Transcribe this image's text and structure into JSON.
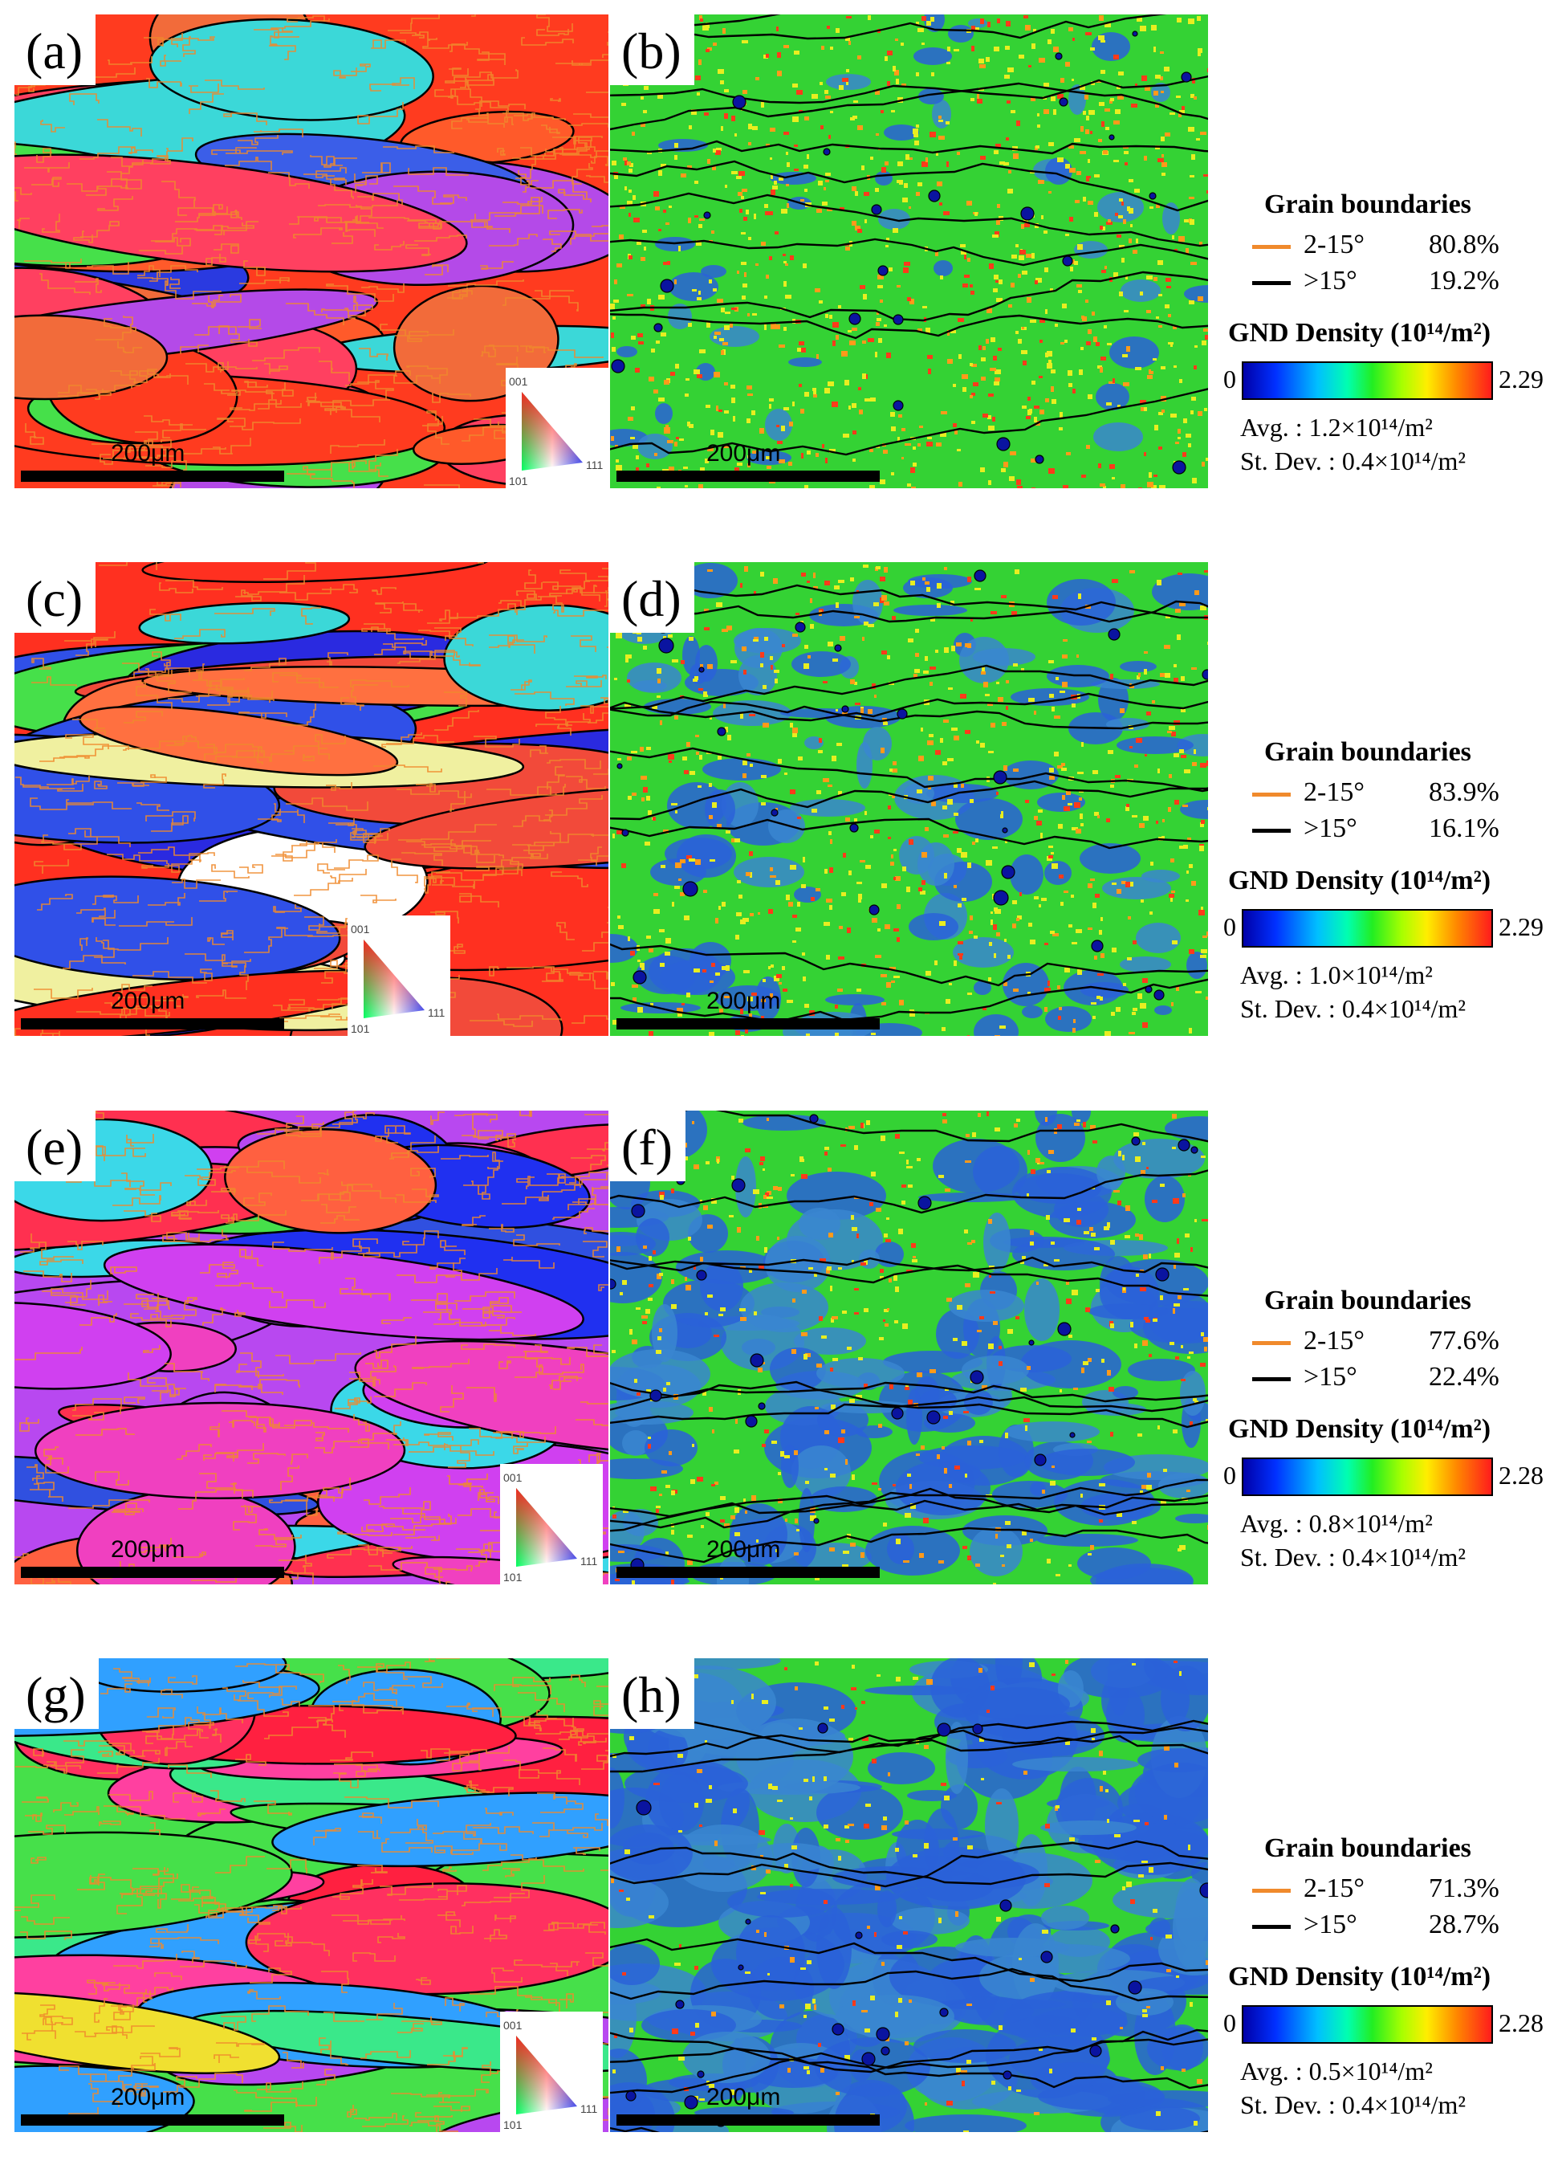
{
  "rows": [
    {
      "left_label": "(a)",
      "right_label": "(b)",
      "scale_bar_left": "200μm",
      "scale_bar_right": "200μm",
      "ipf_key": {
        "top": "001",
        "right": "111",
        "bottom": "101"
      },
      "legend": {
        "gb_title": "Grain boundaries",
        "gb_low": {
          "range": "2-15°",
          "value": "80.8%"
        },
        "gb_high": {
          "range": ">15°",
          "value": "19.2%"
        },
        "gnd_title": "GND Density (10¹⁴/m²)",
        "cbar_min": "0",
        "cbar_max": "2.29",
        "avg": "Avg. : 1.2×10¹⁴/m²",
        "stdev": "St. Dev. : 0.4×10¹⁴/m²"
      }
    },
    {
      "left_label": "(c)",
      "right_label": "(d)",
      "scale_bar_left": "200μm",
      "scale_bar_right": "200μm",
      "ipf_key": {
        "top": "001",
        "right": "111",
        "bottom": "101"
      },
      "legend": {
        "gb_title": "Grain boundaries",
        "gb_low": {
          "range": "2-15°",
          "value": "83.9%"
        },
        "gb_high": {
          "range": ">15°",
          "value": "16.1%"
        },
        "gnd_title": "GND Density (10¹⁴/m²)",
        "cbar_min": "0",
        "cbar_max": "2.29",
        "avg": "Avg. : 1.0×10¹⁴/m²",
        "stdev": "St. Dev. : 0.4×10¹⁴/m²"
      }
    },
    {
      "left_label": "(e)",
      "right_label": "(f)",
      "scale_bar_left": "200μm",
      "scale_bar_right": "200μm",
      "ipf_key": {
        "top": "001",
        "right": "111",
        "bottom": "101"
      },
      "legend": {
        "gb_title": "Grain boundaries",
        "gb_low": {
          "range": "2-15°",
          "value": "77.6%"
        },
        "gb_high": {
          "range": ">15°",
          "value": "22.4%"
        },
        "gnd_title": "GND Density (10¹⁴/m²)",
        "cbar_min": "0",
        "cbar_max": "2.28",
        "avg": "Avg. : 0.8×10¹⁴/m²",
        "stdev": "St. Dev. : 0.4×10¹⁴/m²"
      }
    },
    {
      "left_label": "(g)",
      "right_label": "(h)",
      "scale_bar_left": "200μm",
      "scale_bar_right": "200μm",
      "ipf_key": {
        "top": "001",
        "right": "111",
        "bottom": "101"
      },
      "legend": {
        "gb_title": "Grain boundaries",
        "gb_low": {
          "range": "2-15°",
          "value": "71.3%"
        },
        "gb_high": {
          "range": ">15°",
          "value": "28.7%"
        },
        "gnd_title": "GND Density (10¹⁴/m²)",
        "cbar_min": "0",
        "cbar_max": "2.28",
        "avg": "Avg. : 0.5×10¹⁴/m²",
        "stdev": "St. Dev. : 0.4×10¹⁴/m²"
      }
    }
  ],
  "colors": {
    "low_angle_boundary": "#f08a2c",
    "high_angle_boundary": "#000000",
    "gnd_base": [
      "#39d62a",
      "#4ac93a",
      "#3a8ed6",
      "#2a55d0"
    ]
  }
}
